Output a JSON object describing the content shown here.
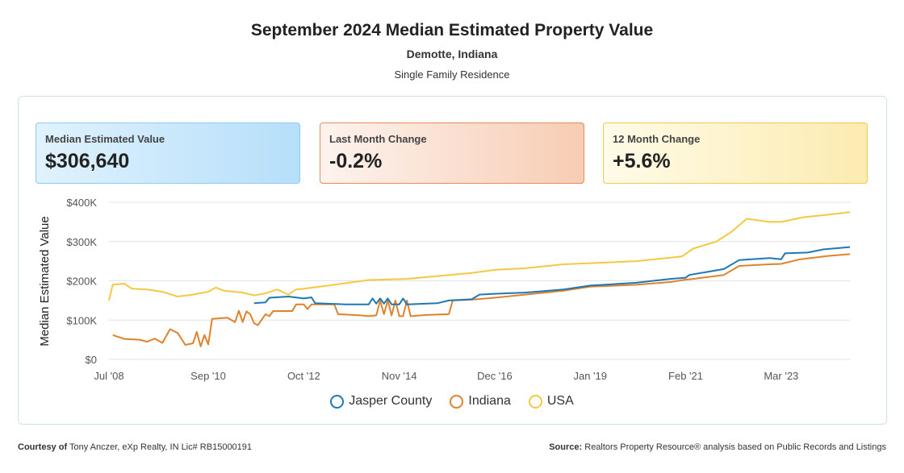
{
  "header": {
    "title": "September 2024 Median Estimated Property Value",
    "location": "Demotte, Indiana",
    "property_type": "Single Family Residence"
  },
  "cards": [
    {
      "label": "Median Estimated Value",
      "value": "$306,640"
    },
    {
      "label": "Last Month Change",
      "value": "-0.2%"
    },
    {
      "label": "12 Month Change",
      "value": "+5.6%"
    }
  ],
  "footer": {
    "courtesy_label": "Courtesy of",
    "courtesy_text": "Tony Anczer, eXp Realty, IN Lic# RB15000191",
    "source_label": "Source:",
    "source_text": "Realtors Property Resource® analysis based on Public Records and Listings"
  },
  "chart_data": {
    "type": "line",
    "ylabel": "Median Estimated Value",
    "ylim": [
      0,
      400000
    ],
    "yticks": [
      "$0",
      "$100K",
      "$200K",
      "$300K",
      "$400K"
    ],
    "xticks": [
      {
        "date": "2008-07",
        "label": "Jul '08"
      },
      {
        "date": "2010-09",
        "label": "Sep '10"
      },
      {
        "date": "2012-10",
        "label": "Oct '12"
      },
      {
        "date": "2014-11",
        "label": "Nov '14"
      },
      {
        "date": "2016-12",
        "label": "Dec '16"
      },
      {
        "date": "2019-01",
        "label": "Jan '19"
      },
      {
        "date": "2021-02",
        "label": "Feb '21"
      },
      {
        "date": "2023-03",
        "label": "Mar '23"
      }
    ],
    "xlim": [
      "2008-07",
      "2024-09"
    ],
    "grid": true,
    "legend": "bottom",
    "series": [
      {
        "name": "Jasper County",
        "color": "#1f77b4",
        "points": [
          [
            "2011-09",
            143000
          ],
          [
            "2011-12",
            145000
          ],
          [
            "2012-01",
            157000
          ],
          [
            "2012-06",
            160000
          ],
          [
            "2012-10",
            155000
          ],
          [
            "2012-12",
            158000
          ],
          [
            "2013-01",
            143000
          ],
          [
            "2013-09",
            140000
          ],
          [
            "2014-03",
            140000
          ],
          [
            "2014-04",
            155000
          ],
          [
            "2014-05",
            142000
          ],
          [
            "2014-06",
            155000
          ],
          [
            "2014-07",
            142000
          ],
          [
            "2014-08",
            155000
          ],
          [
            "2014-09",
            140000
          ],
          [
            "2014-11",
            140000
          ],
          [
            "2014-12",
            155000
          ],
          [
            "2015-01",
            140000
          ],
          [
            "2015-09",
            143000
          ],
          [
            "2015-12",
            150000
          ],
          [
            "2016-06",
            153000
          ],
          [
            "2016-08",
            165000
          ],
          [
            "2016-12",
            167000
          ],
          [
            "2017-08",
            170000
          ],
          [
            "2018-06",
            178000
          ],
          [
            "2019-01",
            188000
          ],
          [
            "2020-01",
            195000
          ],
          [
            "2020-10",
            205000
          ],
          [
            "2021-02",
            208000
          ],
          [
            "2021-03",
            215000
          ],
          [
            "2021-12",
            230000
          ],
          [
            "2022-04",
            253000
          ],
          [
            "2022-12",
            258000
          ],
          [
            "2023-03",
            255000
          ],
          [
            "2023-04",
            270000
          ],
          [
            "2023-10",
            272000
          ],
          [
            "2024-02",
            280000
          ],
          [
            "2024-09",
            286000
          ]
        ]
      },
      {
        "name": "Indiana",
        "color": "#e0822b",
        "points": [
          [
            "2008-08",
            62000
          ],
          [
            "2008-11",
            52000
          ],
          [
            "2009-03",
            50000
          ],
          [
            "2009-05",
            45000
          ],
          [
            "2009-07",
            53000
          ],
          [
            "2009-09",
            42000
          ],
          [
            "2009-11",
            77000
          ],
          [
            "2010-01",
            67000
          ],
          [
            "2010-03",
            37000
          ],
          [
            "2010-05",
            41000
          ],
          [
            "2010-06",
            70000
          ],
          [
            "2010-07",
            33000
          ],
          [
            "2010-08",
            62000
          ],
          [
            "2010-09",
            38000
          ],
          [
            "2010-10",
            103000
          ],
          [
            "2011-02",
            106000
          ],
          [
            "2011-04",
            95000
          ],
          [
            "2011-05",
            124000
          ],
          [
            "2011-06",
            95000
          ],
          [
            "2011-07",
            122000
          ],
          [
            "2011-08",
            115000
          ],
          [
            "2011-09",
            92000
          ],
          [
            "2011-10",
            87000
          ],
          [
            "2011-12",
            115000
          ],
          [
            "2012-01",
            110000
          ],
          [
            "2012-02",
            123000
          ],
          [
            "2012-07",
            123000
          ],
          [
            "2012-08",
            140000
          ],
          [
            "2012-10",
            140000
          ],
          [
            "2012-11",
            128000
          ],
          [
            "2012-12",
            140000
          ],
          [
            "2013-06",
            140000
          ],
          [
            "2013-07",
            115000
          ],
          [
            "2014-01",
            112000
          ],
          [
            "2014-03",
            110000
          ],
          [
            "2014-05",
            112000
          ],
          [
            "2014-06",
            150000
          ],
          [
            "2014-07",
            115000
          ],
          [
            "2014-08",
            150000
          ],
          [
            "2014-09",
            112000
          ],
          [
            "2014-10",
            150000
          ],
          [
            "2014-11",
            110000
          ],
          [
            "2014-12",
            110000
          ],
          [
            "2015-01",
            150000
          ],
          [
            "2015-02",
            110000
          ],
          [
            "2015-06",
            113000
          ],
          [
            "2015-12",
            115000
          ],
          [
            "2016-01",
            150000
          ],
          [
            "2016-06",
            152000
          ],
          [
            "2016-12",
            157000
          ],
          [
            "2017-08",
            165000
          ],
          [
            "2018-06",
            175000
          ],
          [
            "2019-01",
            185000
          ],
          [
            "2020-01",
            190000
          ],
          [
            "2020-10",
            197000
          ],
          [
            "2021-02",
            203000
          ],
          [
            "2021-04",
            205000
          ],
          [
            "2021-12",
            215000
          ],
          [
            "2022-04",
            238000
          ],
          [
            "2022-12",
            242000
          ],
          [
            "2023-03",
            243000
          ],
          [
            "2023-08",
            255000
          ],
          [
            "2024-03",
            263000
          ],
          [
            "2024-09",
            268000
          ]
        ]
      },
      {
        "name": "USA",
        "color": "#f5c842",
        "points": [
          [
            "2008-07",
            150000
          ],
          [
            "2008-08",
            190000
          ],
          [
            "2008-11",
            193000
          ],
          [
            "2009-01",
            180000
          ],
          [
            "2009-05",
            178000
          ],
          [
            "2009-09",
            172000
          ],
          [
            "2010-01",
            160000
          ],
          [
            "2010-05",
            165000
          ],
          [
            "2010-09",
            172000
          ],
          [
            "2010-11",
            183000
          ],
          [
            "2011-01",
            175000
          ],
          [
            "2011-06",
            170000
          ],
          [
            "2011-09",
            163000
          ],
          [
            "2011-12",
            168000
          ],
          [
            "2012-03",
            178000
          ],
          [
            "2012-06",
            165000
          ],
          [
            "2012-08",
            178000
          ],
          [
            "2012-10",
            180000
          ],
          [
            "2013-06",
            190000
          ],
          [
            "2014-03",
            202000
          ],
          [
            "2015-01",
            205000
          ],
          [
            "2015-09",
            212000
          ],
          [
            "2016-06",
            220000
          ],
          [
            "2016-12",
            228000
          ],
          [
            "2017-08",
            232000
          ],
          [
            "2018-06",
            242000
          ],
          [
            "2019-01",
            245000
          ],
          [
            "2020-01",
            250000
          ],
          [
            "2020-09",
            258000
          ],
          [
            "2021-01",
            262000
          ],
          [
            "2021-04",
            282000
          ],
          [
            "2021-10",
            300000
          ],
          [
            "2022-02",
            325000
          ],
          [
            "2022-06",
            358000
          ],
          [
            "2022-12",
            350000
          ],
          [
            "2023-03",
            350000
          ],
          [
            "2023-09",
            362000
          ],
          [
            "2024-03",
            368000
          ],
          [
            "2024-09",
            375000
          ]
        ]
      }
    ]
  }
}
